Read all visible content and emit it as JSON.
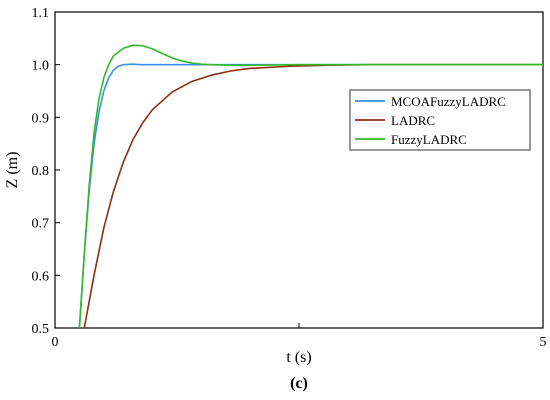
{
  "chart_data": {
    "type": "line",
    "title": "",
    "xlabel": "t (s)",
    "ylabel": "Z (m)",
    "xlim": [
      0,
      5
    ],
    "ylim": [
      0.5,
      1.1
    ],
    "x_ticks": [
      "0",
      "",
      "5"
    ],
    "y_ticks": [
      "0.5",
      "0.6",
      "0.7",
      "0.8",
      "0.9",
      "1.0",
      "1.1"
    ],
    "grid": false,
    "legend_position": "right",
    "series": [
      {
        "name": "MCOAFuzzyLADRC",
        "color": "#3a8ee6",
        "x": [
          0.25,
          0.3,
          0.35,
          0.4,
          0.45,
          0.5,
          0.55,
          0.6,
          0.65,
          0.7,
          0.8,
          0.9,
          1.0,
          1.2,
          1.5,
          2.0,
          3.0,
          4.0,
          5.0
        ],
        "y": [
          0.5,
          0.64,
          0.76,
          0.85,
          0.91,
          0.95,
          0.975,
          0.99,
          0.997,
          1.0,
          1.001,
          1.0,
          1.0,
          1.0,
          1.0,
          1.0,
          1.0,
          1.0,
          1.0
        ]
      },
      {
        "name": "LADRC",
        "color": "#8b2e12",
        "x": [
          0.3,
          0.4,
          0.5,
          0.6,
          0.7,
          0.8,
          0.9,
          1.0,
          1.2,
          1.4,
          1.6,
          1.8,
          2.0,
          2.4,
          2.8,
          3.2,
          4.0,
          5.0
        ],
        "y": [
          0.5,
          0.6,
          0.69,
          0.76,
          0.815,
          0.858,
          0.89,
          0.915,
          0.948,
          0.968,
          0.98,
          0.988,
          0.993,
          0.997,
          0.999,
          1.0,
          1.0,
          1.0
        ]
      },
      {
        "name": "FuzzyLADRC",
        "color": "#33b82a",
        "x": [
          0.25,
          0.3,
          0.35,
          0.4,
          0.45,
          0.5,
          0.55,
          0.6,
          0.7,
          0.8,
          0.9,
          1.0,
          1.1,
          1.2,
          1.3,
          1.4,
          1.5,
          1.6,
          1.8,
          2.0,
          2.5,
          3.0,
          4.0,
          5.0
        ],
        "y": [
          0.5,
          0.64,
          0.77,
          0.87,
          0.935,
          0.975,
          1.0,
          1.017,
          1.031,
          1.037,
          1.036,
          1.03,
          1.021,
          1.013,
          1.007,
          1.003,
          1.001,
          1.0,
          0.999,
          0.999,
          1.0,
          1.0,
          1.0,
          1.0
        ]
      }
    ]
  },
  "caption": "(c)"
}
